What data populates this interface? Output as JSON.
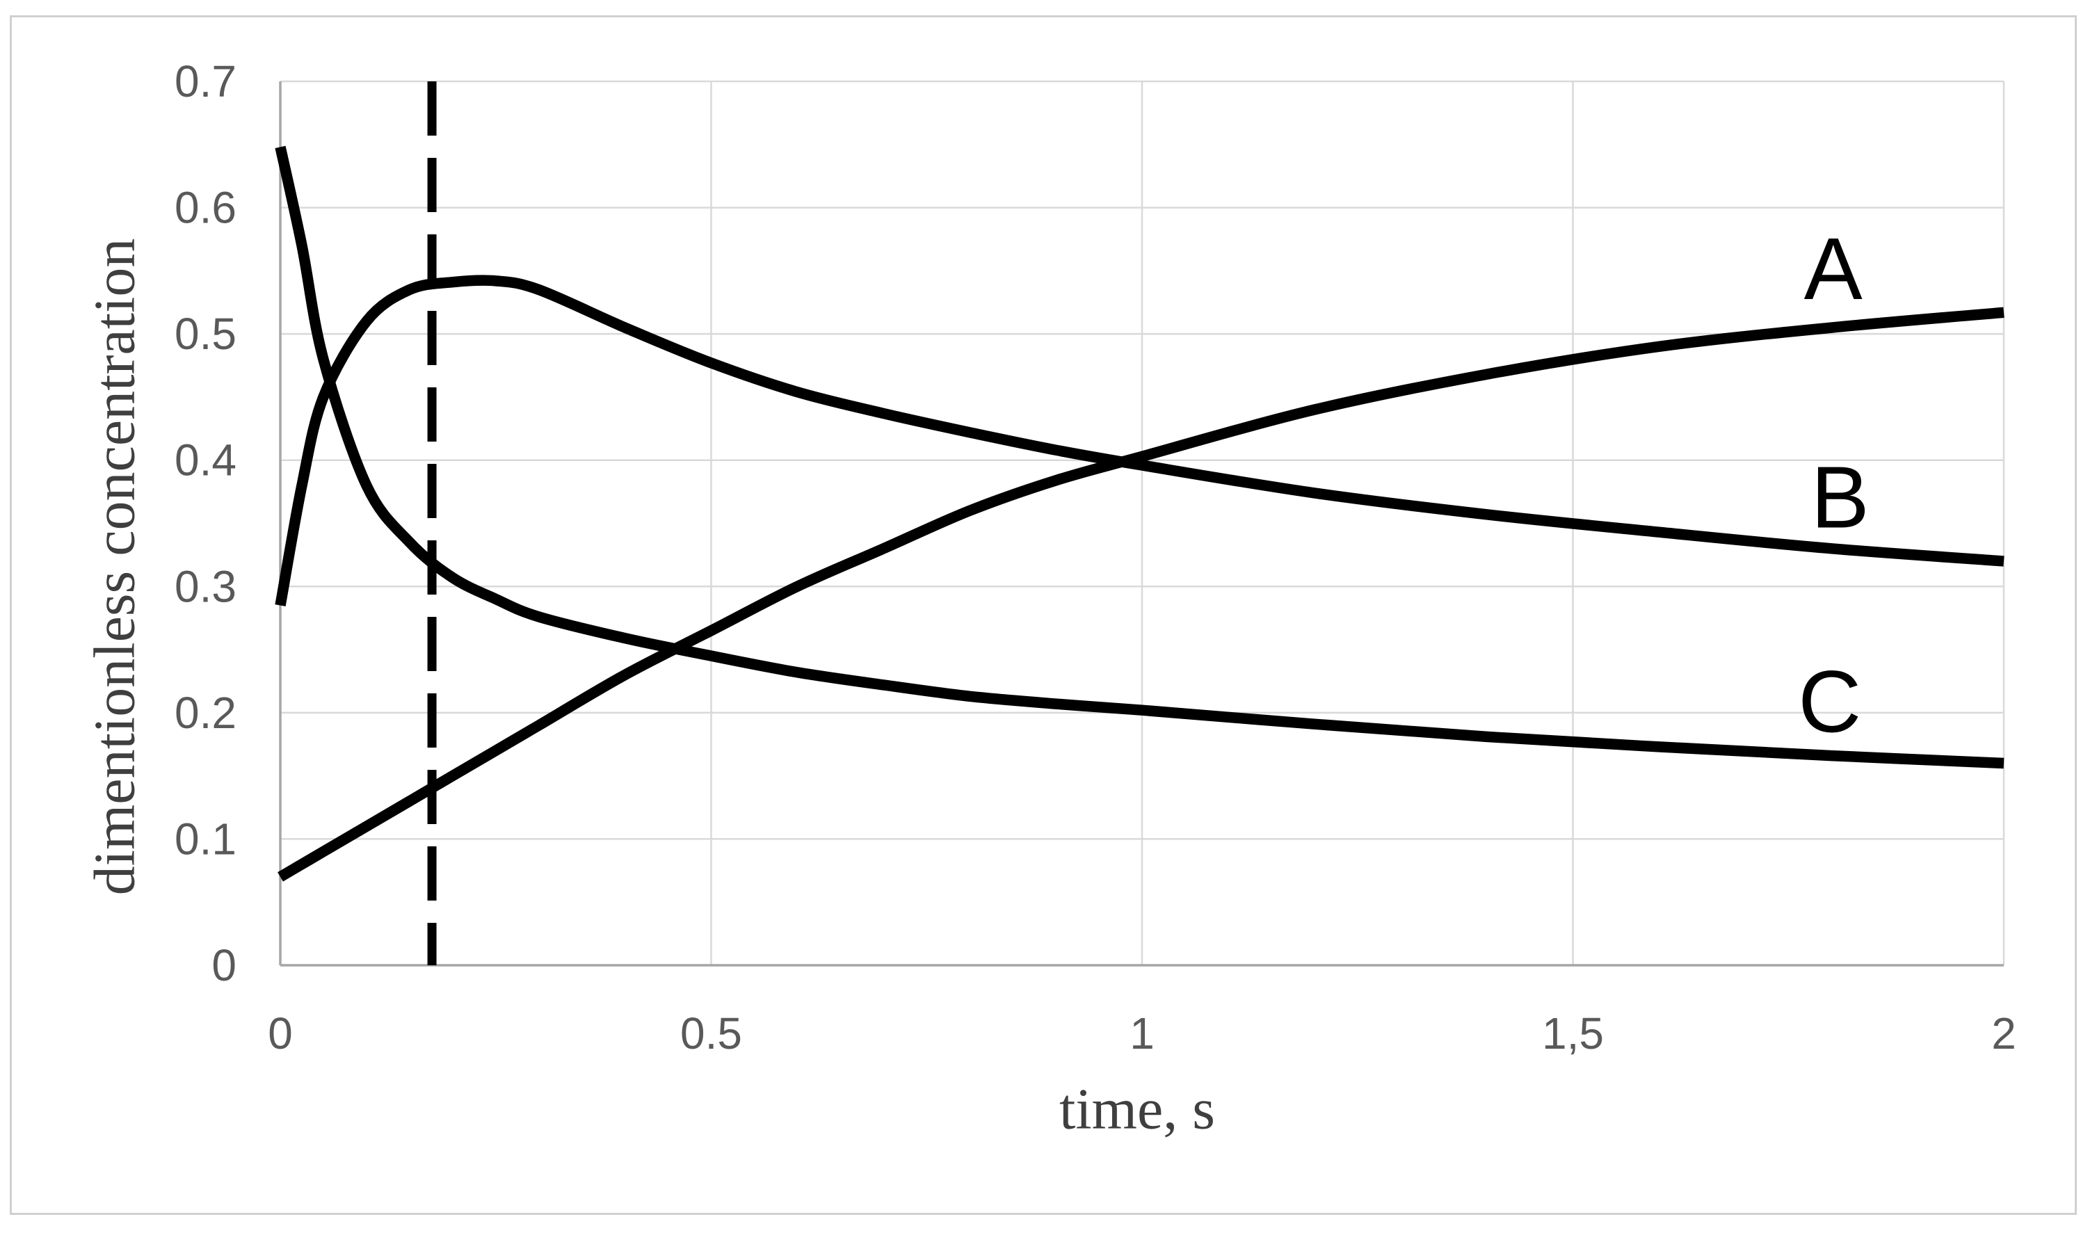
{
  "page": {
    "background": "#FFFFFF",
    "chart_border_color": "#D0D0D0"
  },
  "chart_data": {
    "type": "line",
    "title": "",
    "xlabel": "time, s",
    "ylabel": "dimentionless concentration",
    "xlim": [
      0,
      2
    ],
    "ylim": [
      0,
      0.7
    ],
    "grid": true,
    "legend_position": "inline-labels-right",
    "x_ticks": [
      {
        "t": 0,
        "label": "0"
      },
      {
        "t": 0.5,
        "label": "0.5"
      },
      {
        "t": 1,
        "label": "1"
      },
      {
        "t": 1.5,
        "label": "1,5"
      },
      {
        "t": 2,
        "label": "2"
      }
    ],
    "y_ticks": [
      {
        "v": 0,
        "label": "0"
      },
      {
        "v": 0.1,
        "label": "0.1"
      },
      {
        "v": 0.2,
        "label": "0.2"
      },
      {
        "v": 0.3,
        "label": "0.3"
      },
      {
        "v": 0.4,
        "label": "0.4"
      },
      {
        "v": 0.5,
        "label": "0.5"
      },
      {
        "v": 0.6,
        "label": "0.6"
      },
      {
        "v": 0.7,
        "label": "0.7"
      }
    ],
    "x": [
      0,
      0.025,
      0.05,
      0.1,
      0.15,
      0.2,
      0.25,
      0.3,
      0.4,
      0.5,
      0.6,
      0.7,
      0.8,
      0.9,
      1.0,
      1.2,
      1.4,
      1.6,
      1.8,
      2.0
    ],
    "series": [
      {
        "name": "A",
        "values": [
          0.07,
          0.08,
          0.09,
          0.11,
          0.13,
          0.15,
          0.17,
          0.19,
          0.23,
          0.265,
          0.3,
          0.33,
          0.36,
          0.384,
          0.403,
          0.44,
          0.468,
          0.49,
          0.505,
          0.517
        ],
        "label": {
          "t": 1.802,
          "v": 0.5525
        }
      },
      {
        "name": "B",
        "values": [
          0.285,
          0.38,
          0.45,
          0.51,
          0.535,
          0.541,
          0.542,
          0.535,
          0.505,
          0.477,
          0.454,
          0.437,
          0.422,
          0.408,
          0.396,
          0.374,
          0.357,
          0.343,
          0.33,
          0.32
        ],
        "label": {
          "t": 1.81,
          "v": 0.3715
        }
      },
      {
        "name": "C",
        "values": [
          0.648,
          0.57,
          0.48,
          0.38,
          0.335,
          0.307,
          0.29,
          0.276,
          0.259,
          0.245,
          0.232,
          0.222,
          0.213,
          0.207,
          0.202,
          0.191,
          0.181,
          0.173,
          0.166,
          0.16
        ],
        "label": {
          "t": 1.798,
          "v": 0.2095
        }
      }
    ],
    "annotations": [
      {
        "type": "vline",
        "t": 0.176,
        "line_style": "dashed",
        "color": "#000000"
      }
    ],
    "colors": {
      "series_stroke": "#000000",
      "grid": "#D9D9D9",
      "axis": "#A6A6A6",
      "tick_text": "#595959",
      "axis_title_text": "#3F3F3F"
    }
  }
}
